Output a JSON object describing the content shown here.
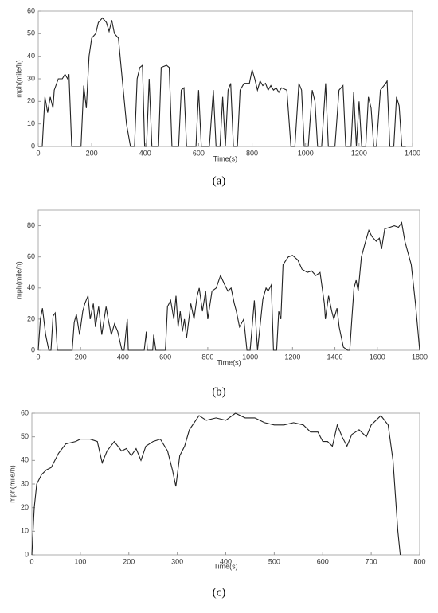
{
  "chart_data": [
    {
      "type": "line",
      "caption": "(a)",
      "xlabel": "Time(s)",
      "ylabel": "mph(mile/h)",
      "color": "#222222",
      "xlim": [
        0,
        1400
      ],
      "xticks": [
        0,
        200,
        400,
        600,
        800,
        1000,
        1200,
        1400
      ],
      "ylim": [
        0,
        60
      ],
      "yticks": [
        0,
        10,
        20,
        30,
        40,
        50,
        60
      ],
      "x": [
        0,
        15,
        25,
        35,
        45,
        55,
        60,
        75,
        90,
        100,
        110,
        115,
        125,
        160,
        170,
        180,
        190,
        200,
        215,
        225,
        240,
        255,
        265,
        275,
        285,
        300,
        310,
        330,
        345,
        360,
        370,
        380,
        390,
        398,
        405,
        415,
        425,
        450,
        460,
        480,
        490,
        500,
        525,
        535,
        545,
        555,
        590,
        600,
        610,
        640,
        655,
        665,
        680,
        690,
        700,
        710,
        720,
        730,
        745,
        755,
        770,
        790,
        800,
        810,
        820,
        830,
        840,
        850,
        860,
        870,
        880,
        890,
        900,
        910,
        930,
        945,
        960,
        975,
        985,
        995,
        1010,
        1025,
        1035,
        1045,
        1060,
        1075,
        1085,
        1110,
        1125,
        1140,
        1150,
        1170,
        1180,
        1190,
        1200,
        1210,
        1225,
        1235,
        1245,
        1255,
        1265,
        1280,
        1300,
        1305,
        1315,
        1330,
        1340,
        1350,
        1360,
        1375
      ],
      "values": [
        0,
        0,
        22,
        15,
        22,
        17,
        25,
        30,
        30,
        32,
        30,
        32,
        0,
        0,
        27,
        17,
        40,
        48,
        50,
        55,
        57,
        55,
        51,
        56,
        50,
        48,
        35,
        10,
        0,
        0,
        30,
        35,
        36,
        0,
        0,
        30,
        0,
        0,
        35,
        36,
        35,
        0,
        0,
        25,
        26,
        0,
        0,
        25,
        0,
        0,
        25,
        0,
        0,
        22,
        0,
        25,
        28,
        0,
        0,
        25,
        28,
        28,
        34,
        30,
        25,
        29,
        27,
        28,
        25,
        27,
        25,
        26,
        24,
        26,
        25,
        0,
        0,
        28,
        25,
        0,
        0,
        25,
        20,
        0,
        0,
        28,
        0,
        0,
        25,
        27,
        0,
        0,
        24,
        0,
        20,
        0,
        0,
        22,
        17,
        0,
        0,
        25,
        28,
        29,
        0,
        0,
        22,
        18,
        0,
        0
      ]
    },
    {
      "type": "line",
      "caption": "(b)",
      "xlabel": "Time(s)",
      "ylabel": "mph(mile/h)",
      "color": "#222222",
      "xlim": [
        0,
        1800
      ],
      "xticks": [
        0,
        200,
        400,
        600,
        800,
        1000,
        1200,
        1400,
        1600,
        1800
      ],
      "ylim": [
        0,
        90
      ],
      "yticks": [
        0,
        20,
        40,
        60,
        80
      ],
      "x": [
        0,
        10,
        20,
        35,
        50,
        60,
        70,
        80,
        90,
        160,
        170,
        180,
        195,
        210,
        220,
        235,
        245,
        260,
        270,
        285,
        300,
        320,
        330,
        345,
        360,
        375,
        395,
        405,
        420,
        425,
        500,
        510,
        515,
        540,
        545,
        555,
        600,
        610,
        625,
        640,
        650,
        660,
        670,
        680,
        690,
        700,
        720,
        735,
        750,
        760,
        775,
        790,
        800,
        820,
        840,
        860,
        880,
        895,
        910,
        925,
        935,
        950,
        970,
        985,
        1000,
        1020,
        1035,
        1060,
        1075,
        1085,
        1100,
        1110,
        1125,
        1135,
        1145,
        1155,
        1180,
        1200,
        1225,
        1245,
        1270,
        1290,
        1310,
        1330,
        1340,
        1350,
        1355,
        1370,
        1385,
        1395,
        1410,
        1420,
        1440,
        1460,
        1470,
        1480,
        1490,
        1500,
        1510,
        1525,
        1545,
        1560,
        1575,
        1595,
        1610,
        1620,
        1635,
        1660,
        1680,
        1700,
        1715,
        1730,
        1760,
        1780,
        1800
      ],
      "values": [
        0,
        20,
        27,
        10,
        0,
        0,
        22,
        24,
        0,
        0,
        18,
        23,
        10,
        25,
        30,
        35,
        20,
        30,
        15,
        28,
        10,
        28,
        20,
        10,
        17,
        12,
        0,
        0,
        20,
        0,
        0,
        12,
        0,
        0,
        10,
        0,
        0,
        28,
        32,
        20,
        35,
        15,
        25,
        12,
        20,
        8,
        30,
        20,
        35,
        40,
        25,
        38,
        20,
        38,
        40,
        48,
        42,
        38,
        40,
        30,
        25,
        15,
        20,
        0,
        0,
        32,
        0,
        33,
        40,
        38,
        42,
        0,
        0,
        25,
        20,
        55,
        60,
        61,
        58,
        52,
        50,
        51,
        48,
        50,
        40,
        30,
        20,
        35,
        25,
        20,
        27,
        15,
        2,
        0,
        0,
        20,
        40,
        45,
        38,
        60,
        70,
        77,
        73,
        70,
        72,
        65,
        78,
        79,
        80,
        79,
        82,
        70,
        55,
        30,
        0
      ]
    },
    {
      "type": "line",
      "caption": "(c)",
      "xlabel": "Time(s)",
      "ylabel": "mph(mile/h)",
      "color": "#222222",
      "xlim": [
        0,
        800
      ],
      "xticks": [
        0,
        100,
        200,
        300,
        400,
        500,
        600,
        700,
        800
      ],
      "ylim": [
        0,
        60
      ],
      "yticks": [
        0,
        10,
        20,
        30,
        40,
        50,
        60
      ],
      "x": [
        0,
        5,
        10,
        20,
        30,
        40,
        55,
        70,
        90,
        100,
        120,
        135,
        145,
        155,
        170,
        185,
        195,
        205,
        215,
        225,
        235,
        250,
        265,
        280,
        290,
        297,
        305,
        315,
        325,
        345,
        360,
        380,
        400,
        420,
        440,
        460,
        480,
        500,
        520,
        540,
        560,
        575,
        590,
        600,
        610,
        620,
        630,
        640,
        650,
        660,
        675,
        690,
        700,
        720,
        735,
        745,
        755,
        760
      ],
      "values": [
        0,
        20,
        30,
        34,
        36,
        37,
        43,
        47,
        48,
        49,
        49,
        48,
        39,
        44,
        48,
        44,
        45,
        42,
        45,
        40,
        46,
        48,
        49,
        44,
        36,
        29,
        42,
        46,
        53,
        59,
        57,
        58,
        57,
        60,
        58,
        58,
        56,
        55,
        55,
        56,
        55,
        52,
        52,
        48,
        48,
        46,
        55,
        50,
        46,
        51,
        53,
        50,
        55,
        59,
        55,
        40,
        10,
        0
      ]
    }
  ]
}
